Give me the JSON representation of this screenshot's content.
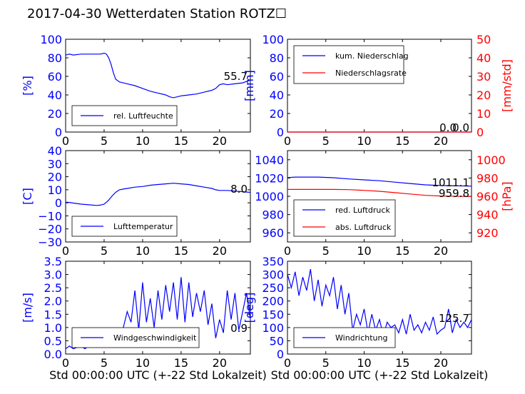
{
  "title": "2017-04-30 Wetterdaten Station ROTZ☐",
  "colors": {
    "blue": "#0000ff",
    "red": "#ff0000",
    "black": "#000000"
  },
  "chart_data": [
    {
      "id": "humidity",
      "type": "line",
      "xlim": [
        0,
        24
      ],
      "ylim": [
        0,
        100
      ],
      "xticks": [
        "0",
        "5",
        "10",
        "15",
        "20"
      ],
      "yticks": [
        "0",
        "20",
        "40",
        "60",
        "80",
        "100"
      ],
      "ylabel": "[%]",
      "legend": {
        "placement": "lower-left",
        "entries": [
          "rel. Luftfeuchte"
        ]
      },
      "annotations": [
        "55.7"
      ],
      "series": [
        {
          "name": "rel. Luftfeuchte",
          "color": "#0000ff",
          "x": [
            0,
            0.5,
            1,
            2,
            3,
            4,
            4.5,
            5,
            5.3,
            5.6,
            5.9,
            6.2,
            6.5,
            7,
            7.5,
            8,
            9,
            10,
            11,
            12,
            13,
            13.5,
            14,
            15,
            16,
            17,
            18,
            19,
            19.5,
            20,
            20.5,
            21,
            22,
            23,
            24
          ],
          "y": [
            83,
            84,
            83,
            84,
            84,
            84,
            84,
            85,
            84,
            80,
            73,
            64,
            57,
            54,
            53,
            52,
            50,
            47,
            44,
            42,
            40,
            38,
            37,
            39,
            40,
            41,
            43,
            45,
            47,
            51,
            52,
            51,
            52,
            53,
            56
          ]
        }
      ]
    },
    {
      "id": "precip",
      "type": "line",
      "xlim": [
        0,
        24
      ],
      "ylim": [
        0,
        100
      ],
      "y2lim": [
        0,
        50
      ],
      "xticks": [
        "0",
        "5",
        "10",
        "15",
        "20"
      ],
      "yticks": [
        "0",
        "20",
        "40",
        "60",
        "80",
        "100"
      ],
      "y2ticks": [
        "0",
        "10",
        "20",
        "30",
        "40",
        "50"
      ],
      "ylabel": "[mm]",
      "y2label": "[mm/std]",
      "legend": {
        "placement": "upper-left",
        "entries": [
          "kum. Niederschlag",
          "Niederschlagsrate"
        ]
      },
      "annotations": [
        "0.0",
        "0.0"
      ],
      "series": [
        {
          "name": "kum. Niederschlag",
          "color": "#0000ff",
          "x": [
            0,
            24
          ],
          "y": [
            0,
            0
          ]
        },
        {
          "name": "Niederschlagsrate",
          "color": "#ff0000",
          "x": [
            0,
            24
          ],
          "y": [
            0,
            0
          ]
        }
      ]
    },
    {
      "id": "temperature",
      "type": "line",
      "xlim": [
        0,
        24
      ],
      "ylim": [
        -30,
        40
      ],
      "xticks": [
        "0",
        "5",
        "10",
        "15",
        "20"
      ],
      "yticks": [
        "−30",
        "−20",
        "−10",
        "0",
        "10",
        "20",
        "30",
        "40"
      ],
      "ylabel": "[C]",
      "legend": {
        "placement": "lower-left",
        "entries": [
          "Lufttemperatur"
        ]
      },
      "annotations": [
        "8.0"
      ],
      "series": [
        {
          "name": "Lufttemperatur",
          "color": "#0000ff",
          "x": [
            0,
            0.5,
            1,
            2,
            3,
            4,
            4.5,
            5,
            5.5,
            6,
            6.5,
            7,
            7.5,
            8,
            9,
            10,
            11,
            12,
            13,
            14,
            15,
            16,
            17,
            18,
            19,
            19.5,
            20,
            21,
            22,
            23,
            24
          ],
          "y": [
            0.5,
            0.3,
            -0.2,
            -1,
            -1.5,
            -2,
            -1.8,
            -1,
            1.5,
            5,
            8,
            10,
            10.5,
            11,
            12,
            12.5,
            13.5,
            14,
            14.5,
            15,
            14.5,
            14,
            13,
            12,
            11,
            10,
            9.5,
            9.5,
            9,
            8.5,
            8
          ]
        }
      ]
    },
    {
      "id": "pressure",
      "type": "line",
      "xlim": [
        0,
        24
      ],
      "ylim": [
        950,
        1050
      ],
      "y2lim": [
        910,
        1010
      ],
      "xticks": [
        "0",
        "5",
        "10",
        "15",
        "20"
      ],
      "yticks": [
        "960",
        "980",
        "1000",
        "1020",
        "1040"
      ],
      "y2ticks": [
        "920",
        "940",
        "960",
        "980",
        "1000"
      ],
      "y2label": "[hPa]",
      "legend": {
        "placement": "lower-left",
        "entries": [
          "red. Luftdruck",
          "abs. Luftdruck"
        ]
      },
      "annotations": [
        "1011.1",
        "959.8"
      ],
      "series": [
        {
          "name": "red. Luftdruck",
          "color": "#0000ff",
          "x": [
            0,
            1,
            2,
            4,
            6,
            8,
            10,
            12,
            14,
            16,
            18,
            20,
            22,
            24
          ],
          "y": [
            1020.5,
            1021,
            1021,
            1021,
            1020.3,
            1019,
            1018,
            1017,
            1015.5,
            1014,
            1012.5,
            1011.8,
            1011.5,
            1011.1
          ]
        },
        {
          "name": "abs. Luftdruck",
          "color": "#ff0000",
          "x": [
            0,
            2,
            4,
            6,
            8,
            10,
            12,
            14,
            16,
            18,
            20,
            22,
            24
          ],
          "y": [
            967.5,
            967.5,
            967.5,
            967.5,
            967.3,
            966.5,
            965.5,
            964,
            962.5,
            961,
            960.3,
            960,
            959.8
          ]
        }
      ]
    },
    {
      "id": "windspeed",
      "type": "line",
      "xlim": [
        0,
        24
      ],
      "ylim": [
        0,
        3.5
      ],
      "xticks": [
        "0",
        "5",
        "10",
        "15",
        "20"
      ],
      "yticks": [
        "0.0",
        "0.5",
        "1.0",
        "1.5",
        "2.0",
        "2.5",
        "3.0",
        "3.5"
      ],
      "ylabel": "[m/s]",
      "xlabel": "Std 00:00:00 UTC (+-22 Std Lokalzeit)",
      "legend": {
        "placement": "lower-left",
        "entries": [
          "Windgeschwindigkeit"
        ]
      },
      "annotations": [
        "0.9"
      ],
      "series": [
        {
          "name": "Windgeschwindigkeit",
          "color": "#0000ff",
          "x": [
            0,
            0.5,
            1,
            1.5,
            2,
            2.5,
            3,
            3.5,
            4,
            4.5,
            5,
            5.5,
            6,
            6.5,
            7,
            7.5,
            8,
            8.5,
            9,
            9.5,
            10,
            10.5,
            11,
            11.5,
            12,
            12.5,
            13,
            13.5,
            14,
            14.5,
            15,
            15.5,
            16,
            16.5,
            17,
            17.5,
            18,
            18.5,
            19,
            19.5,
            20,
            20.5,
            21,
            21.5,
            22,
            22.5,
            23,
            23.5,
            24
          ],
          "y": [
            0.2,
            0.3,
            0.2,
            0.25,
            0.3,
            0.2,
            0.3,
            0.35,
            0.25,
            0.4,
            0.3,
            0.5,
            0.6,
            0.9,
            0.8,
            1.0,
            1.6,
            1.2,
            2.4,
            0.9,
            2.7,
            1.2,
            2.1,
            1.0,
            2.4,
            1.3,
            2.6,
            1.6,
            2.7,
            1.3,
            2.9,
            1.2,
            2.7,
            1.4,
            2.3,
            1.6,
            2.4,
            1.1,
            1.9,
            0.6,
            1.3,
            0.8,
            2.4,
            1.3,
            2.3,
            0.9,
            1.6,
            2.3,
            1.3
          ]
        }
      ]
    },
    {
      "id": "winddir",
      "type": "line",
      "xlim": [
        0,
        24
      ],
      "ylim": [
        0,
        350
      ],
      "xticks": [
        "0",
        "5",
        "10",
        "15",
        "20"
      ],
      "yticks": [
        "0",
        "50",
        "100",
        "150",
        "200",
        "250",
        "300",
        "350"
      ],
      "ylabel": "[deg]",
      "xlabel": "Std 00:00:00 UTC (+-22 Std Lokalzeit)",
      "legend": {
        "placement": "lower-left",
        "entries": [
          "Windrichtung"
        ]
      },
      "annotations": [
        "125.7"
      ],
      "series": [
        {
          "name": "Windrichtung",
          "color": "#0000ff",
          "x": [
            0,
            0.5,
            1,
            1.5,
            2,
            2.5,
            3,
            3.5,
            4,
            4.5,
            5,
            5.5,
            6,
            6.5,
            7,
            7.5,
            8,
            8.5,
            9,
            9.5,
            10,
            10.5,
            11,
            11.5,
            12,
            12.5,
            13,
            13.5,
            14,
            14.5,
            15,
            15.5,
            16,
            16.5,
            17,
            17.5,
            18,
            18.5,
            19,
            19.5,
            20,
            20.5,
            21,
            21.5,
            22,
            22.5,
            23,
            23.5,
            24
          ],
          "y": [
            300,
            250,
            310,
            220,
            290,
            240,
            320,
            200,
            280,
            180,
            260,
            220,
            290,
            170,
            260,
            150,
            230,
            90,
            150,
            110,
            170,
            80,
            150,
            90,
            130,
            70,
            120,
            100,
            110,
            80,
            130,
            75,
            150,
            90,
            110,
            80,
            120,
            90,
            140,
            75,
            90,
            100,
            170,
            80,
            130,
            100,
            120,
            100,
            130
          ]
        }
      ]
    }
  ]
}
